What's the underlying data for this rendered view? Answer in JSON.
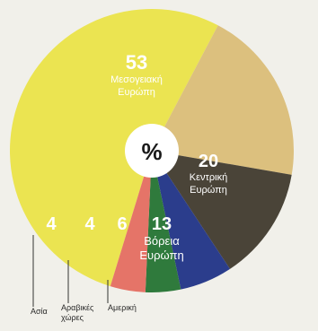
{
  "chart_data": {
    "type": "pie",
    "center_label": "%",
    "slices": [
      {
        "value": 53,
        "value_label": "53",
        "name": "Μεσογειακή Ευρώπη",
        "name_lines": [
          "Μεσογειακή",
          "Ευρώπη"
        ],
        "color": "#ebe451"
      },
      {
        "value": 20,
        "value_label": "20",
        "name": "Κεντρική Ευρώπη",
        "name_lines": [
          "Κεντρική",
          "Ευρώπη"
        ],
        "color": "#dcc07e"
      },
      {
        "value": 13,
        "value_label": "13",
        "name": "Βόρεια Ευρώπη",
        "name_lines": [
          "Βόρεια",
          "Ευρώπη"
        ],
        "color": "#4a4438"
      },
      {
        "value": 6,
        "value_label": "6",
        "name": "Αμερική",
        "name_lines": [
          "Αμερική"
        ],
        "color": "#2b3d8c"
      },
      {
        "value": 4,
        "value_label": "4",
        "name": "Αραβικές χώρες",
        "name_lines": [
          "Αραβικές",
          "χώρες"
        ],
        "color": "#2f7a3c"
      },
      {
        "value": 4,
        "value_label": "4",
        "name": "Ασία",
        "name_lines": [
          "Ασία"
        ],
        "color": "#e57468"
      }
    ]
  }
}
